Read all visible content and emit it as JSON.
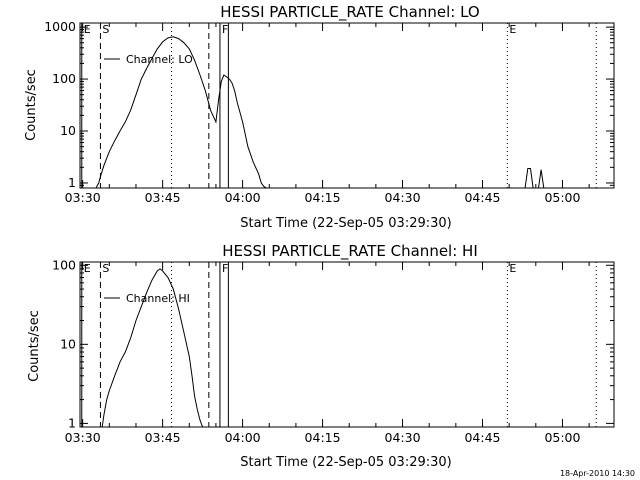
{
  "chart_data": [
    {
      "type": "line",
      "title": "HESSI PARTICLE_RATE Channel: LO",
      "xlabel": "Start Time (22-Sep-05 03:29:30)",
      "ylabel": "Counts/sec",
      "y_scale": "log",
      "ylim": [
        0.8,
        1200
      ],
      "xlim": [
        "03:29:30",
        "05:09:40"
      ],
      "x_ticks": [
        "03:30",
        "03:45",
        "04:00",
        "04:15",
        "04:30",
        "04:45",
        "05:00"
      ],
      "y_ticks": [
        "1",
        "10",
        "100",
        "1000"
      ],
      "legend": {
        "entries": [
          "Channel: LO"
        ],
        "placement": "top-left"
      },
      "series": [
        {
          "name": "Channel: LO",
          "x": [
            "03:32:30",
            "03:33:00",
            "03:33:30",
            "03:34:00",
            "03:34:30",
            "03:35:00",
            "03:36:00",
            "03:37:00",
            "03:38:00",
            "03:39:00",
            "03:40:00",
            "03:41:00",
            "03:42:00",
            "03:43:00",
            "03:44:00",
            "03:45:00",
            "03:46:00",
            "03:47:00",
            "03:48:00",
            "03:49:00",
            "03:50:00",
            "03:51:00",
            "03:52:00",
            "03:53:00",
            "03:54:00",
            "03:55:00",
            "03:55:30",
            "03:56:00",
            "03:56:30",
            "03:57:00",
            "03:57:30",
            "03:58:00",
            "03:58:30",
            "03:59:00",
            "04:00:00",
            "04:01:00",
            "04:02:00",
            "04:03:00",
            "04:03:30",
            "04:04:00",
            "04:04:30"
          ],
          "values": [
            0.8,
            1.0,
            1.5,
            2.2,
            3.0,
            4.0,
            6.5,
            10,
            15,
            25,
            50,
            100,
            160,
            250,
            380,
            520,
            620,
            650,
            600,
            500,
            380,
            230,
            120,
            60,
            25,
            15,
            40,
            90,
            120,
            110,
            100,
            85,
            60,
            35,
            15,
            5,
            2.5,
            1.5,
            1.0,
            0.85,
            0.8
          ]
        },
        {
          "name": "",
          "x": [
            "04:53:00",
            "04:53:30",
            "04:54:00",
            "04:54:30",
            "04:55:00",
            "04:55:30",
            "04:56:00",
            "04:56:30",
            "04:57:00"
          ],
          "values": [
            0.8,
            1.9,
            1.9,
            0.8,
            0.8,
            0.8,
            1.8,
            0.8,
            0.8
          ]
        }
      ],
      "markers": [
        {
          "time": "03:29:50",
          "label": "E",
          "style": "solid"
        },
        {
          "time": "03:33:20",
          "label": "S",
          "style": "dashed"
        },
        {
          "time": "03:46:40",
          "label": "",
          "style": "dotted"
        },
        {
          "time": "03:53:40",
          "label": "",
          "style": "dashed"
        },
        {
          "time": "03:55:45",
          "label": "F",
          "style": "solid"
        },
        {
          "time": "03:57:20",
          "label": "",
          "style": "solid"
        },
        {
          "time": "04:49:40",
          "label": "E",
          "style": "dotted"
        },
        {
          "time": "05:06:20",
          "label": "",
          "style": "dotted"
        }
      ]
    },
    {
      "type": "line",
      "title": "HESSI PARTICLE_RATE Channel: HI",
      "xlabel": "Start Time (22-Sep-05 03:29:30)",
      "ylabel": "Counts/sec",
      "y_scale": "log",
      "ylim": [
        0.9,
        110
      ],
      "xlim": [
        "03:29:30",
        "05:09:40"
      ],
      "x_ticks": [
        "03:30",
        "03:45",
        "04:00",
        "04:15",
        "04:30",
        "04:45",
        "05:00"
      ],
      "y_ticks": [
        "1",
        "10",
        "100"
      ],
      "legend": {
        "entries": [
          "Channel: HI"
        ],
        "placement": "top-left"
      },
      "series": [
        {
          "name": "Channel: HI",
          "x": [
            "03:33:40",
            "03:34:00",
            "03:34:30",
            "03:35:00",
            "03:36:00",
            "03:37:00",
            "03:38:00",
            "03:39:00",
            "03:40:00",
            "03:41:00",
            "03:42:00",
            "03:43:00",
            "03:44:00",
            "03:44:30",
            "03:45:00",
            "03:46:00",
            "03:47:00",
            "03:48:00",
            "03:49:00",
            "03:50:00",
            "03:50:30",
            "03:51:00",
            "03:51:30",
            "03:52:00",
            "03:52:30"
          ],
          "values": [
            0.9,
            1.3,
            2.0,
            2.6,
            4.0,
            6.0,
            8.0,
            12,
            20,
            30,
            45,
            65,
            85,
            90,
            85,
            70,
            50,
            28,
            14,
            7,
            4,
            2.2,
            1.5,
            1.1,
            0.9
          ]
        }
      ],
      "markers": [
        {
          "time": "03:29:50",
          "label": "E",
          "style": "solid"
        },
        {
          "time": "03:33:20",
          "label": "S",
          "style": "dashed"
        },
        {
          "time": "03:46:40",
          "label": "",
          "style": "dotted"
        },
        {
          "time": "03:53:40",
          "label": "",
          "style": "dashed"
        },
        {
          "time": "03:55:45",
          "label": "F",
          "style": "solid"
        },
        {
          "time": "03:57:20",
          "label": "",
          "style": "solid"
        },
        {
          "time": "04:49:40",
          "label": "E",
          "style": "dotted"
        },
        {
          "time": "05:06:20",
          "label": "",
          "style": "dotted"
        }
      ]
    }
  ],
  "footer": {
    "timestamp": "18-Apr-2010 14:30"
  }
}
